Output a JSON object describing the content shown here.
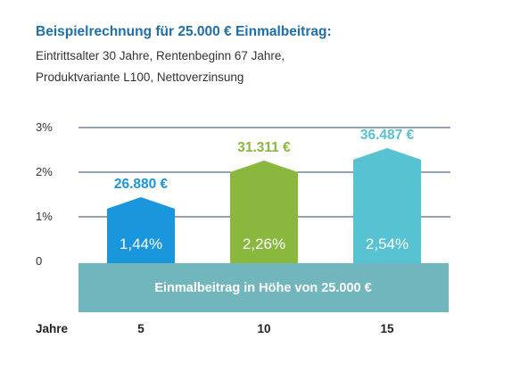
{
  "header": {
    "title": "Beispielrechnung für 25.000 € Einmalbeitrag:",
    "subtitle_line1": "Eintrittsalter 30 Jahre, Rentenbeginn 67 Jahre,",
    "subtitle_line2": "Produktvariante L100, Nettoverzinsung"
  },
  "chart_data": {
    "type": "bar",
    "title": "Beispielrechnung für 25.000 € Einmalbeitrag:",
    "xlabel": "Jahre",
    "ylabel": "",
    "ylim": [
      0,
      3
    ],
    "y_ticks": [
      "0",
      "1%",
      "2%",
      "3%"
    ],
    "grid": true,
    "categories": [
      "5",
      "10",
      "15"
    ],
    "values": [
      1.44,
      2.26,
      2.54
    ],
    "value_labels": [
      "1,44%",
      "2,26%",
      "2,54%"
    ],
    "amount_labels": [
      "26.880 €",
      "31.311 €",
      "36.487 €"
    ],
    "colors": [
      "#1a96dc",
      "#8ab83e",
      "#56c2d2"
    ],
    "base_band_label": "Einmalbeitrag in Höhe von 25.000 €",
    "base_band_color": "#72b6bd",
    "grid_color": "#2d4a6e"
  }
}
